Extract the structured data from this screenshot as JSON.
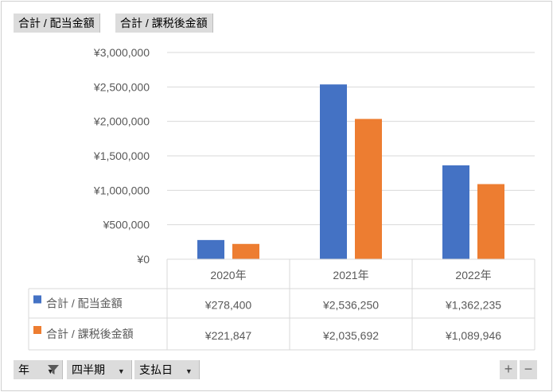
{
  "top_fields": [
    {
      "label": "合計 / 配当金額"
    },
    {
      "label": "合計 / 課税後金額"
    }
  ],
  "bottom_fields": [
    {
      "label": "年",
      "icon": "filter-icon"
    },
    {
      "label": "四半期",
      "icon": "chevron-down-icon"
    },
    {
      "label": "支払日",
      "icon": "chevron-down-icon"
    }
  ],
  "zoom_buttons": {
    "plus": "+",
    "minus": "−"
  },
  "colors": {
    "series_1": "#4472c4",
    "series_2": "#ed7d31",
    "grid": "#d9d9d9"
  },
  "chart_data": {
    "type": "bar",
    "categories": [
      "2020年",
      "2021年",
      "2022年"
    ],
    "series": [
      {
        "name": "合計 / 配当金額",
        "values": [
          278400,
          2536250,
          1362235
        ],
        "labels": [
          "¥278,400",
          "¥2,536,250",
          "¥1,362,235"
        ]
      },
      {
        "name": "合計 / 課税後金額",
        "values": [
          221847,
          2035692,
          1089946
        ],
        "labels": [
          "¥221,847",
          "¥2,035,692",
          "¥1,089,946"
        ]
      }
    ],
    "ylim": [
      0,
      3000000
    ],
    "yticks": [
      {
        "value": 0,
        "label": "¥0"
      },
      {
        "value": 500000,
        "label": "¥500,000"
      },
      {
        "value": 1000000,
        "label": "¥1,000,000"
      },
      {
        "value": 1500000,
        "label": "¥1,500,000"
      },
      {
        "value": 2000000,
        "label": "¥2,000,000"
      },
      {
        "value": 2500000,
        "label": "¥2,500,000"
      },
      {
        "value": 3000000,
        "label": "¥3,000,000"
      }
    ],
    "grid": true,
    "legend": "data-table"
  }
}
